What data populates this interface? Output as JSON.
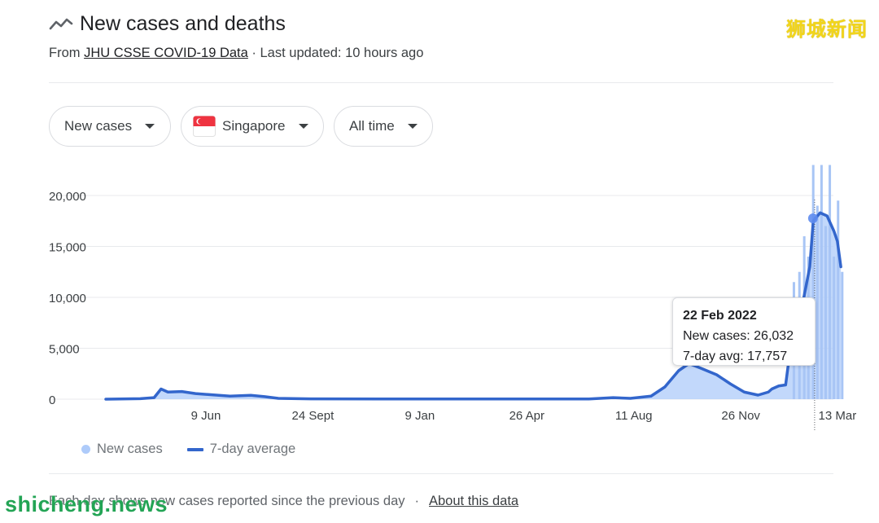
{
  "header": {
    "title": "New cases and deaths",
    "source_prefix": "From",
    "source_link": "JHU CSSE COVID-19 Data",
    "updated": "· Last updated: 10 hours ago"
  },
  "watermarks": {
    "top": "狮城新闻",
    "bottom": "shicheng.news"
  },
  "filters": {
    "metric": "New cases",
    "location": "Singapore",
    "range": "All time"
  },
  "tooltip": {
    "date": "22 Feb 2022",
    "new_cases": "New cases: 26,032",
    "avg": "7-day avg: 17,757"
  },
  "legend": {
    "bars": "New cases",
    "line": "7-day average"
  },
  "footer": {
    "note": "Each day shows new cases reported since the previous day",
    "sep": "·",
    "link": "About this data"
  },
  "colors": {
    "line": "#3366cc",
    "area": "#aecbfa",
    "bars": "#a8c5f5",
    "grid": "#e8eaed"
  },
  "chart_data": {
    "type": "area",
    "ylim": [
      0,
      23000
    ],
    "yticks": [
      0,
      5000,
      10000,
      15000,
      20000
    ],
    "ytick_labels": [
      "0",
      "5,000",
      "10,000",
      "15,000",
      "20,000"
    ],
    "xtick_labels": [
      "9 Jun",
      "24 Sept",
      "9 Jan",
      "26 Apr",
      "11 Aug",
      "26 Nov",
      "13 Mar"
    ],
    "xtick_positions": [
      0.145,
      0.3,
      0.455,
      0.61,
      0.765,
      0.92,
      1.06
    ],
    "series": [
      {
        "name": "7-day average",
        "points": [
          [
            0.0,
            0
          ],
          [
            0.05,
            50
          ],
          [
            0.07,
            150
          ],
          [
            0.08,
            1000
          ],
          [
            0.09,
            700
          ],
          [
            0.11,
            750
          ],
          [
            0.13,
            550
          ],
          [
            0.15,
            450
          ],
          [
            0.18,
            300
          ],
          [
            0.21,
            380
          ],
          [
            0.23,
            250
          ],
          [
            0.25,
            80
          ],
          [
            0.3,
            30
          ],
          [
            0.4,
            20
          ],
          [
            0.5,
            20
          ],
          [
            0.6,
            20
          ],
          [
            0.7,
            20
          ],
          [
            0.735,
            150
          ],
          [
            0.76,
            80
          ],
          [
            0.79,
            300
          ],
          [
            0.81,
            1200
          ],
          [
            0.83,
            2800
          ],
          [
            0.845,
            3500
          ],
          [
            0.86,
            3100
          ],
          [
            0.885,
            2400
          ],
          [
            0.905,
            1500
          ],
          [
            0.925,
            700
          ],
          [
            0.945,
            400
          ],
          [
            0.96,
            700
          ],
          [
            0.965,
            1000
          ],
          [
            0.975,
            1300
          ],
          [
            0.985,
            1400
          ],
          [
            0.99,
            4000
          ],
          [
            1.0,
            8000
          ],
          [
            1.01,
            9500
          ],
          [
            1.02,
            13000
          ],
          [
            1.025,
            17500
          ],
          [
            1.035,
            18300
          ],
          [
            1.045,
            18000
          ],
          [
            1.055,
            16500
          ],
          [
            1.06,
            15500
          ],
          [
            1.065,
            13000
          ]
        ]
      },
      {
        "name": "New cases",
        "spikes": [
          [
            0.997,
            11500
          ],
          [
            1.005,
            12500
          ],
          [
            1.012,
            16000
          ],
          [
            1.018,
            14000
          ],
          [
            1.025,
            23000
          ],
          [
            1.031,
            19000
          ],
          [
            1.037,
            23000
          ],
          [
            1.043,
            17000
          ],
          [
            1.049,
            23000
          ],
          [
            1.055,
            14000
          ],
          [
            1.061,
            19500
          ],
          [
            1.067,
            12500
          ]
        ]
      }
    ]
  }
}
